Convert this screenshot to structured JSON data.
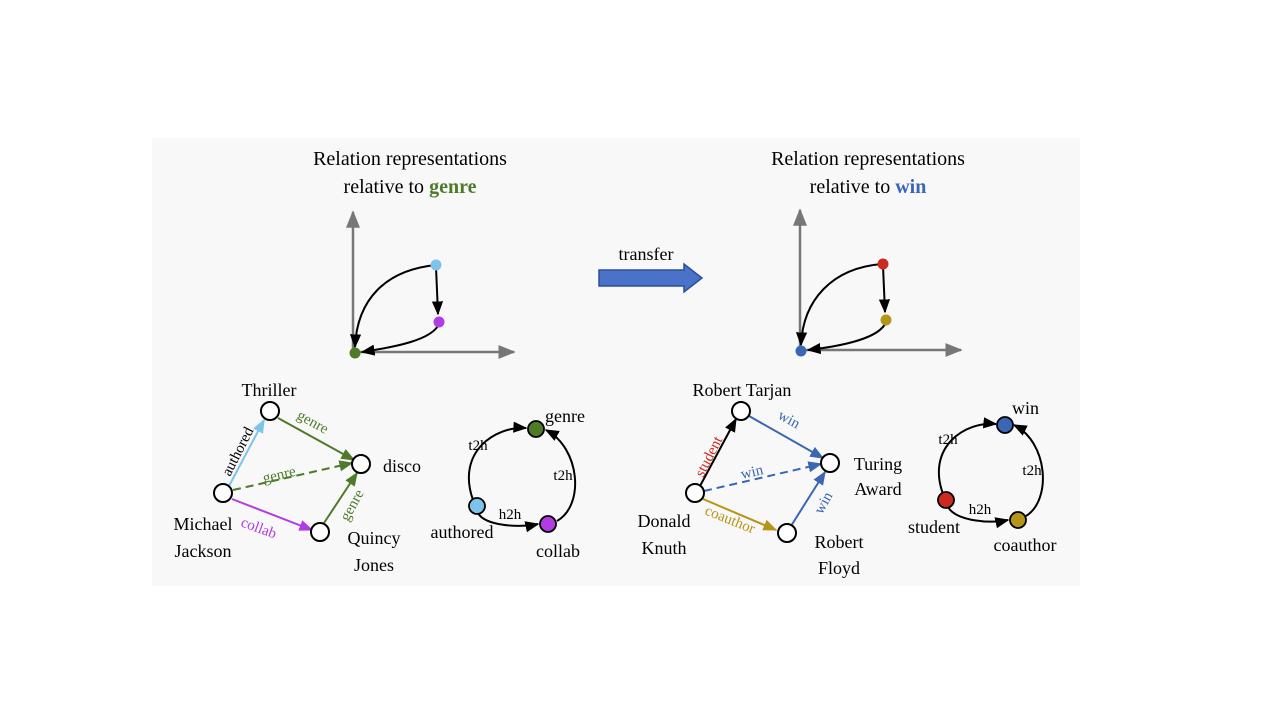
{
  "colors": {
    "panel_bg": "#f8f8f8",
    "axis": "#777777",
    "edge": "#000000",
    "genre": "#4e7a2a",
    "win": "#3a66b3",
    "authored": "#7ec3ea",
    "collab": "#b23be3",
    "student": "#cc2a1e",
    "coauthor": "#b59418",
    "node_fill": "#ffffff",
    "arrow_fill": "#4a72c8",
    "arrow_stroke": "#2b4f98"
  },
  "left": {
    "title_line1": "Relation representations",
    "title_line2_prefix": "relative to",
    "title_keyword": "genre",
    "graph": {
      "thriller": "Thriller",
      "disco": "disco",
      "michael": "Michael",
      "jackson": "Jackson",
      "quincy": "Quincy",
      "jones": "Jones",
      "authored": "authored",
      "genre_top": "genre",
      "genre_mid": "genre",
      "genre_right": "genre",
      "collab": "collab"
    },
    "relgraph": {
      "genre": "genre",
      "authored": "authored",
      "collab": "collab",
      "t2h_left": "t2h",
      "t2h_right": "t2h",
      "h2h": "h2h"
    }
  },
  "transfer": "transfer",
  "right": {
    "title_line1": "Relation representations",
    "title_line2_prefix": "relative to",
    "title_keyword": "win",
    "graph": {
      "tarjan": "Robert Tarjan",
      "turing1": "Turing",
      "turing2": "Award",
      "donald": "Donald",
      "knuth": "Knuth",
      "robert": "Robert",
      "floyd": "Floyd",
      "student": "student",
      "win_top": "win",
      "win_mid": "win",
      "win_right": "win",
      "coauthor": "coauthor"
    },
    "relgraph": {
      "win": "win",
      "student": "student",
      "coauthor": "coauthor",
      "t2h_left": "t2h",
      "t2h_right": "t2h",
      "h2h": "h2h"
    }
  }
}
